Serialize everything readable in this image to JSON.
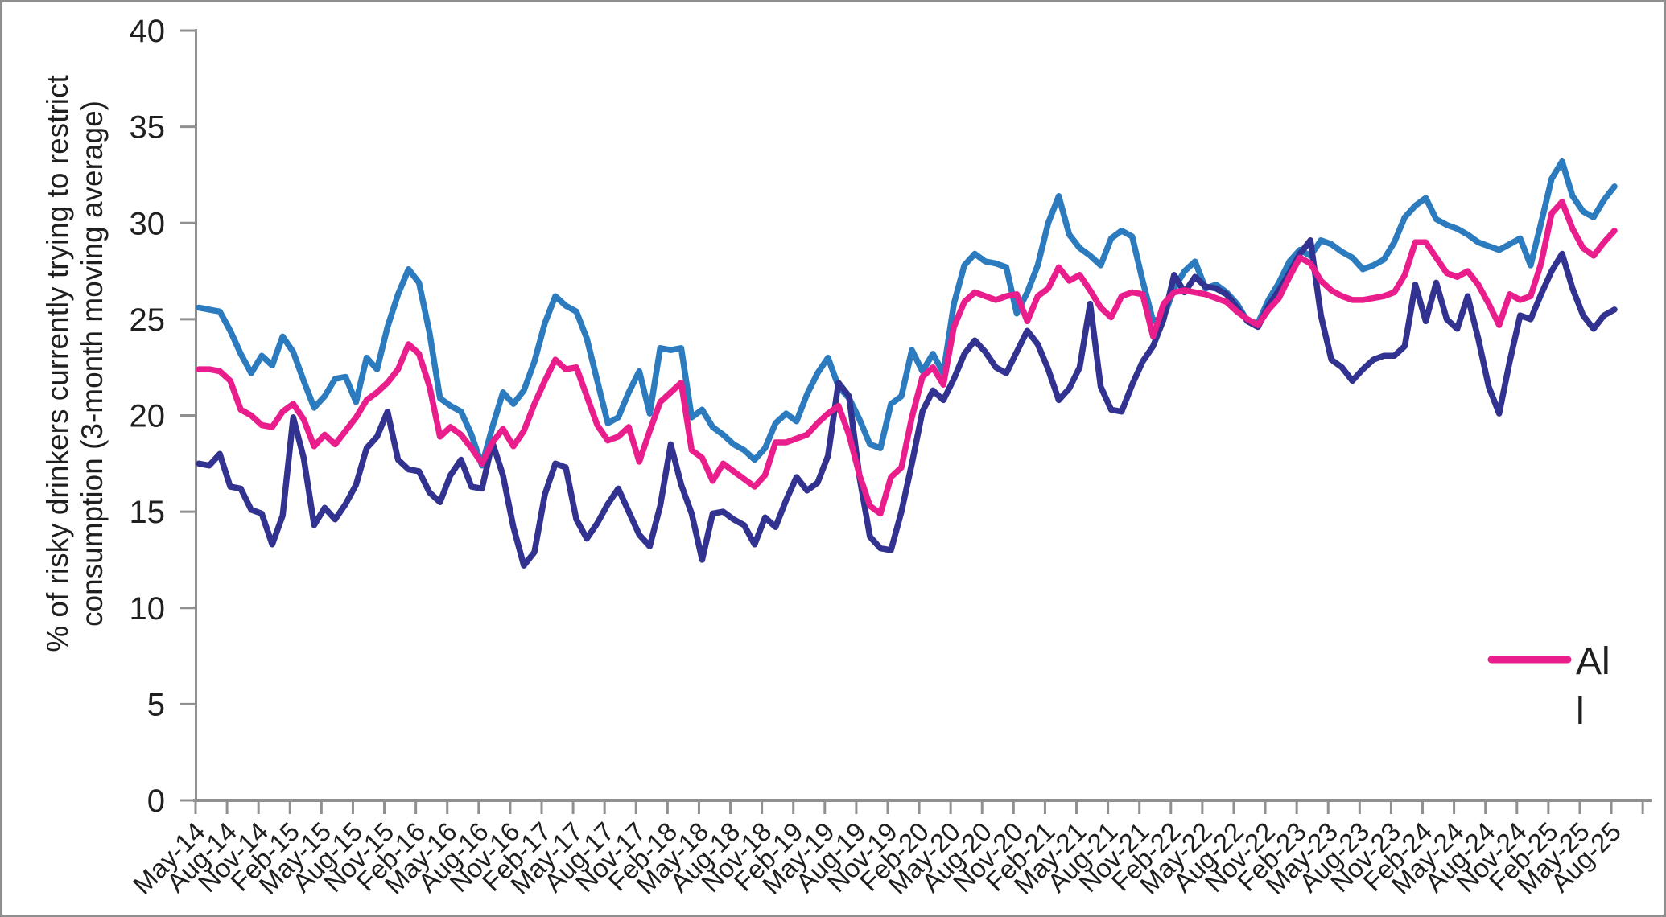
{
  "chart_data": {
    "type": "line",
    "title": "",
    "ylabel_line1": "% of risky drinkers currently trying to restrict",
    "ylabel_line2": "consumption (3-month moving average)",
    "ylim": [
      0,
      40
    ],
    "ytick_step": 5,
    "grid": "off",
    "x_label_every_n_months": 3,
    "x_label_rotation_deg": -45,
    "legend_position": "right-lower-inside",
    "categories": [
      "May-14",
      "Jun-14",
      "Jul-14",
      "Aug-14",
      "Sep-14",
      "Oct-14",
      "Nov-14",
      "Dec-14",
      "Jan-15",
      "Feb-15",
      "Mar-15",
      "Apr-15",
      "May-15",
      "Jun-15",
      "Jul-15",
      "Aug-15",
      "Sep-15",
      "Oct-15",
      "Nov-15",
      "Dec-15",
      "Jan-16",
      "Feb-16",
      "Mar-16",
      "Apr-16",
      "May-16",
      "Jun-16",
      "Jul-16",
      "Aug-16",
      "Sep-16",
      "Oct-16",
      "Nov-16",
      "Dec-16",
      "Jan-17",
      "Feb-17",
      "Mar-17",
      "Apr-17",
      "May-17",
      "Jun-17",
      "Jul-17",
      "Aug-17",
      "Sep-17",
      "Oct-17",
      "Nov-17",
      "Dec-17",
      "Jan-18",
      "Feb-18",
      "Mar-18",
      "Apr-18",
      "May-18",
      "Jun-18",
      "Jul-18",
      "Aug-18",
      "Sep-18",
      "Oct-18",
      "Nov-18",
      "Dec-18",
      "Jan-19",
      "Feb-19",
      "Mar-19",
      "Apr-19",
      "May-19",
      "Jun-19",
      "Jul-19",
      "Aug-19",
      "Sep-19",
      "Oct-19",
      "Nov-19",
      "Dec-19",
      "Jan-20",
      "Feb-20",
      "Mar-20",
      "Apr-20",
      "May-20",
      "Jun-20",
      "Jul-20",
      "Aug-20",
      "Sep-20",
      "Oct-20",
      "Nov-20",
      "Dec-20",
      "Jan-21",
      "Feb-21",
      "Mar-21",
      "Apr-21",
      "May-21",
      "Jun-21",
      "Jul-21",
      "Aug-21",
      "Sep-21",
      "Oct-21",
      "Nov-21",
      "Dec-21",
      "Jan-22",
      "Feb-22",
      "Mar-22",
      "Apr-22",
      "May-22",
      "Jun-22",
      "Jul-22",
      "Aug-22",
      "Sep-22",
      "Oct-22",
      "Nov-22",
      "Dec-22",
      "Jan-23",
      "Feb-23",
      "Mar-23",
      "Apr-23",
      "May-23",
      "Jun-23",
      "Jul-23",
      "Aug-23",
      "Sep-23",
      "Oct-23",
      "Nov-23",
      "Dec-23",
      "Jan-24",
      "Feb-24",
      "Mar-24",
      "Apr-24",
      "May-24",
      "Jun-24",
      "Jul-24",
      "Aug-24",
      "Sep-24",
      "Oct-24",
      "Nov-24",
      "Dec-24",
      "Jan-25",
      "Feb-25",
      "Mar-25",
      "Apr-25",
      "May-25",
      "Jun-25",
      "Jul-25",
      "Aug-25"
    ],
    "series": [
      {
        "name": "unlabeled-blue-series",
        "color": "#2B7BBE",
        "values": [
          25.6,
          25.5,
          25.4,
          24.4,
          23.2,
          22.2,
          23.1,
          22.6,
          24.1,
          23.3,
          21.8,
          20.4,
          21.0,
          21.9,
          22.0,
          20.7,
          23.0,
          22.4,
          24.6,
          26.3,
          27.6,
          26.9,
          24.3,
          20.9,
          20.5,
          20.2,
          19.0,
          17.4,
          19.4,
          21.2,
          20.6,
          21.3,
          22.8,
          24.8,
          26.2,
          25.7,
          25.4,
          24.0,
          21.8,
          19.6,
          19.9,
          21.2,
          22.3,
          20.1,
          23.5,
          23.4,
          23.5,
          19.9,
          20.3,
          19.4,
          19.0,
          18.5,
          18.2,
          17.7,
          18.3,
          19.6,
          20.1,
          19.7,
          21.1,
          22.2,
          23.0,
          21.5,
          20.9,
          19.8,
          18.5,
          18.3,
          20.6,
          21.0,
          23.4,
          22.3,
          23.2,
          22.2,
          25.8,
          27.8,
          28.4,
          28.0,
          27.9,
          27.7,
          25.3,
          26.4,
          27.8,
          30.0,
          31.4,
          29.4,
          28.7,
          28.3,
          27.8,
          29.2,
          29.6,
          29.3,
          27.0,
          24.9,
          25.1,
          26.6,
          27.5,
          28.0,
          26.6,
          26.8,
          26.4,
          25.8,
          24.9,
          24.8,
          26.0,
          26.9,
          28.0,
          28.6,
          28.3,
          29.1,
          28.9,
          28.5,
          28.2,
          27.6,
          27.8,
          28.1,
          29.0,
          30.3,
          30.9,
          31.3,
          30.2,
          29.9,
          29.7,
          29.4,
          29.0,
          28.8,
          28.6,
          28.9,
          29.2,
          27.8,
          30.0,
          32.3,
          33.2,
          31.4,
          30.6,
          30.3,
          31.2,
          31.9
        ]
      },
      {
        "name": "unlabeled-navy-series",
        "color": "#323290",
        "values": [
          17.5,
          17.4,
          18.0,
          16.3,
          16.2,
          15.1,
          14.9,
          13.3,
          14.8,
          19.9,
          17.8,
          14.3,
          15.2,
          14.6,
          15.4,
          16.4,
          18.3,
          18.9,
          20.2,
          17.7,
          17.2,
          17.1,
          16.0,
          15.5,
          16.9,
          17.7,
          16.3,
          16.2,
          18.6,
          16.9,
          14.2,
          12.2,
          12.9,
          15.9,
          17.5,
          17.3,
          14.6,
          13.6,
          14.4,
          15.4,
          16.2,
          15.0,
          13.8,
          13.2,
          15.3,
          18.5,
          16.4,
          14.9,
          12.5,
          14.9,
          15.0,
          14.6,
          14.3,
          13.3,
          14.7,
          14.2,
          15.6,
          16.8,
          16.1,
          16.5,
          17.9,
          21.7,
          21.0,
          16.8,
          13.7,
          13.1,
          13.0,
          15.0,
          17.5,
          20.2,
          21.3,
          20.8,
          21.9,
          23.2,
          23.9,
          23.3,
          22.5,
          22.2,
          23.3,
          24.4,
          23.7,
          22.4,
          20.8,
          21.4,
          22.5,
          25.8,
          21.5,
          20.3,
          20.2,
          21.6,
          22.8,
          23.6,
          25.0,
          27.3,
          26.4,
          27.2,
          26.7,
          26.6,
          26.3,
          25.6,
          24.9,
          24.6,
          25.7,
          26.5,
          27.4,
          28.4,
          29.1,
          25.2,
          22.9,
          22.5,
          21.8,
          22.4,
          22.9,
          23.1,
          23.1,
          23.6,
          26.8,
          24.9,
          26.9,
          25.0,
          24.5,
          26.2,
          24.0,
          21.5,
          20.1,
          22.8,
          25.2,
          25.0,
          26.3,
          27.5,
          28.4,
          26.6,
          25.2,
          24.5,
          25.2,
          25.5
        ]
      },
      {
        "name": "All",
        "color": "#E91E8C",
        "values": [
          22.4,
          22.4,
          22.3,
          21.8,
          20.3,
          20.0,
          19.5,
          19.4,
          20.2,
          20.6,
          19.8,
          18.4,
          19.0,
          18.5,
          19.2,
          19.9,
          20.8,
          21.2,
          21.7,
          22.4,
          23.7,
          23.2,
          21.5,
          18.9,
          19.4,
          19.0,
          18.3,
          17.5,
          18.6,
          19.3,
          18.4,
          19.2,
          20.6,
          21.8,
          22.9,
          22.4,
          22.5,
          21.0,
          19.5,
          18.7,
          18.9,
          19.4,
          17.6,
          19.2,
          20.7,
          21.2,
          21.7,
          18.2,
          17.8,
          16.6,
          17.5,
          17.1,
          16.7,
          16.3,
          16.9,
          18.6,
          18.6,
          18.8,
          19.0,
          19.6,
          20.1,
          20.5,
          19.0,
          16.9,
          15.3,
          14.9,
          16.8,
          17.3,
          19.9,
          22.0,
          22.5,
          21.6,
          24.6,
          25.9,
          26.4,
          26.2,
          26.0,
          26.2,
          26.3,
          24.9,
          26.2,
          26.6,
          27.7,
          27.0,
          27.3,
          26.5,
          25.6,
          25.1,
          26.2,
          26.4,
          26.3,
          24.1,
          25.8,
          26.4,
          26.5,
          26.4,
          26.3,
          26.1,
          25.9,
          25.4,
          25.0,
          24.7,
          25.5,
          26.1,
          27.2,
          28.2,
          27.9,
          27.0,
          26.5,
          26.2,
          26.0,
          26.0,
          26.1,
          26.2,
          26.4,
          27.3,
          29.0,
          29.0,
          28.2,
          27.4,
          27.2,
          27.5,
          26.8,
          25.8,
          24.7,
          26.3,
          26.0,
          26.2,
          27.9,
          30.5,
          31.1,
          29.7,
          28.7,
          28.3,
          29.0,
          29.6
        ]
      }
    ]
  },
  "axis": {
    "yticks": [
      "0",
      "5",
      "10",
      "15",
      "20",
      "25",
      "30",
      "35",
      "40"
    ]
  },
  "legend": {
    "series": "All",
    "line1": "Al",
    "line2": "l",
    "swatch_color": "#E91E8C"
  },
  "frame": {
    "border_color": "#8f8f8f",
    "axis_color": "#909090"
  }
}
